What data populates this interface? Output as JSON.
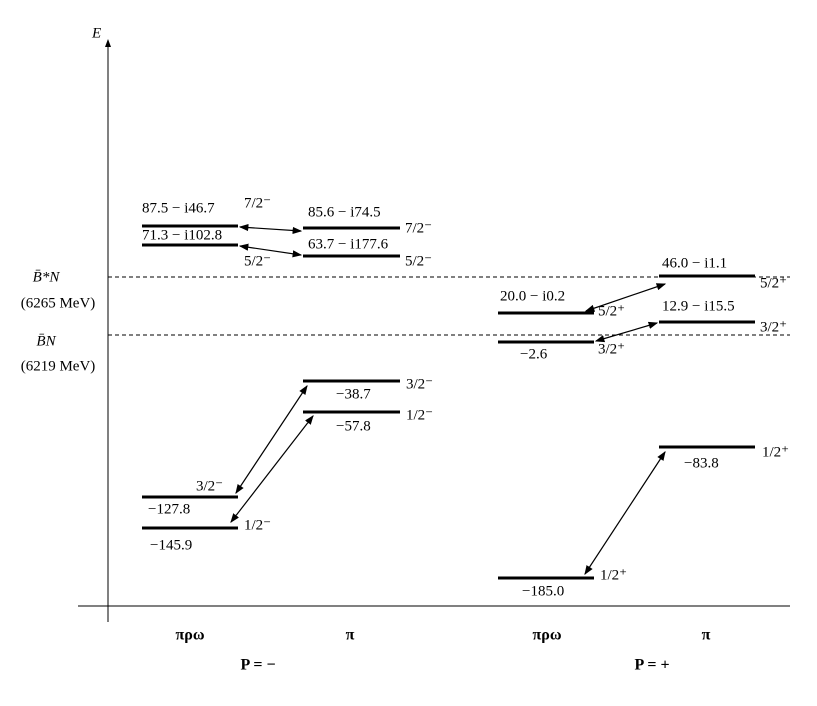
{
  "axis_label": "E",
  "thresholds": [
    {
      "label": "B̄*N",
      "energy": "(6265 MeV)"
    },
    {
      "label": "B̄N",
      "energy": "(6219 MeV)"
    }
  ],
  "columns": [
    "πρω",
    "π",
    "πρω",
    "π"
  ],
  "groups": [
    "P = −",
    "P = +"
  ],
  "levels": [
    {
      "value": "87.5 − i46.7",
      "spin": "7/2⁻"
    },
    {
      "value": "71.3 − i102.8",
      "spin": "5/2⁻"
    },
    {
      "value": "−127.8",
      "spin": "3/2⁻"
    },
    {
      "value": "−145.9",
      "spin": "1/2⁻"
    },
    {
      "value": "85.6 − i74.5",
      "spin": "7/2⁻"
    },
    {
      "value": "63.7 − i177.6",
      "spin": "5/2⁻"
    },
    {
      "value": "−38.7",
      "spin": "3/2⁻"
    },
    {
      "value": "−57.8",
      "spin": "1/2⁻"
    },
    {
      "value": "20.0 − i0.2",
      "spin": "5/2⁺"
    },
    {
      "value": "−2.6",
      "spin": "3/2⁺"
    },
    {
      "value": "−185.0",
      "spin": "1/2⁺"
    },
    {
      "value": "46.0 − i1.1",
      "spin": "5/2⁺"
    },
    {
      "value": "12.9 − i15.5",
      "spin": "3/2⁺"
    },
    {
      "value": "−83.8",
      "spin": "1/2⁺"
    }
  ]
}
